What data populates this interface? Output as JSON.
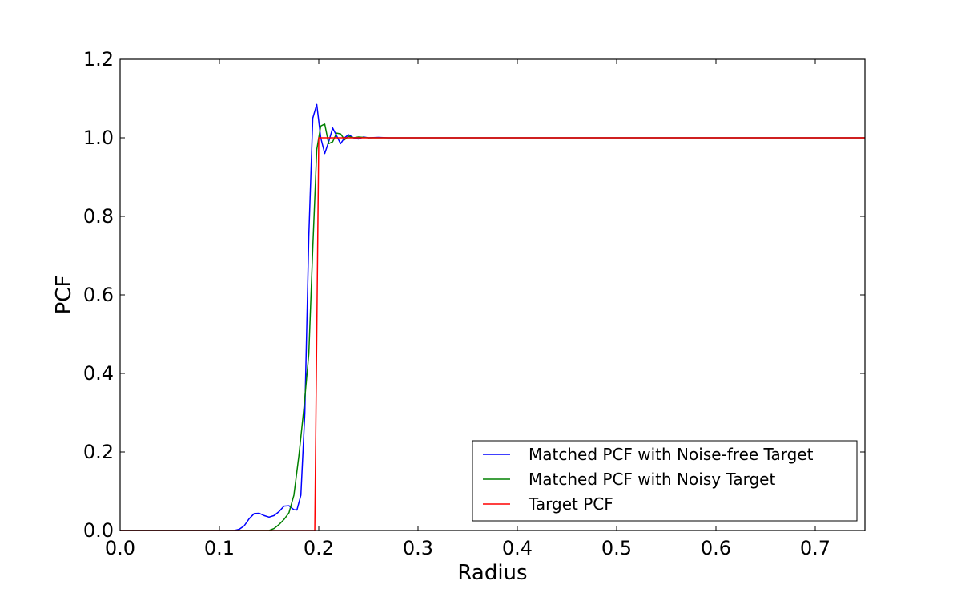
{
  "chart_data": {
    "type": "line",
    "xlabel": "Radius",
    "ylabel": "PCF",
    "xlim": [
      0.0,
      0.75
    ],
    "ylim": [
      0.0,
      1.2
    ],
    "xticks": [
      "0.0",
      "0.1",
      "0.2",
      "0.3",
      "0.4",
      "0.5",
      "0.6",
      "0.7"
    ],
    "yticks": [
      "0.0",
      "0.2",
      "0.4",
      "0.6",
      "0.8",
      "1.0",
      "1.2"
    ],
    "grid": false,
    "legend_position": "lower-right",
    "series": [
      {
        "name": "Matched PCF with Noise-free Target",
        "color": "#0000ff",
        "x": [
          0.0,
          0.115,
          0.12,
          0.125,
          0.13,
          0.135,
          0.14,
          0.145,
          0.15,
          0.155,
          0.16,
          0.165,
          0.17,
          0.175,
          0.178,
          0.182,
          0.186,
          0.19,
          0.194,
          0.198,
          0.202,
          0.206,
          0.21,
          0.214,
          0.218,
          0.222,
          0.226,
          0.23,
          0.235,
          0.24,
          0.245,
          0.25,
          0.26,
          0.27,
          0.3,
          0.35,
          0.4,
          0.45,
          0.5,
          0.55,
          0.6,
          0.65,
          0.7,
          0.75
        ],
        "y": [
          0.0,
          0.0,
          0.003,
          0.012,
          0.03,
          0.043,
          0.044,
          0.038,
          0.034,
          0.038,
          0.048,
          0.062,
          0.063,
          0.053,
          0.052,
          0.09,
          0.3,
          0.75,
          1.05,
          1.085,
          1.0,
          0.96,
          0.99,
          1.025,
          1.005,
          0.985,
          1.0,
          1.008,
          1.0,
          0.997,
          1.002,
          1.0,
          1.001,
          1.0,
          1.0,
          1.0,
          1.0,
          1.0,
          1.0,
          1.0,
          1.0,
          1.0,
          1.0,
          1.0
        ]
      },
      {
        "name": "Matched PCF with Noisy Target",
        "color": "#008000",
        "x": [
          0.0,
          0.15,
          0.155,
          0.16,
          0.165,
          0.17,
          0.175,
          0.18,
          0.185,
          0.19,
          0.194,
          0.198,
          0.202,
          0.206,
          0.21,
          0.214,
          0.218,
          0.222,
          0.226,
          0.23,
          0.235,
          0.24,
          0.25,
          0.26,
          0.3,
          0.35,
          0.4,
          0.45,
          0.5,
          0.55,
          0.6,
          0.65,
          0.7,
          0.75
        ],
        "y": [
          0.0,
          0.0,
          0.005,
          0.015,
          0.028,
          0.045,
          0.09,
          0.19,
          0.31,
          0.45,
          0.72,
          0.97,
          1.03,
          1.035,
          0.985,
          0.99,
          1.012,
          1.01,
          0.995,
          1.004,
          1.0,
          1.002,
          1.0,
          1.0,
          1.0,
          1.0,
          1.0,
          1.0,
          1.0,
          1.0,
          1.0,
          1.0,
          1.0,
          1.0
        ]
      },
      {
        "name": "Target PCF",
        "color": "#ff0000",
        "x": [
          0.0,
          0.196,
          0.2,
          0.75
        ],
        "y": [
          0.0,
          0.0,
          1.0,
          1.0
        ]
      }
    ]
  }
}
